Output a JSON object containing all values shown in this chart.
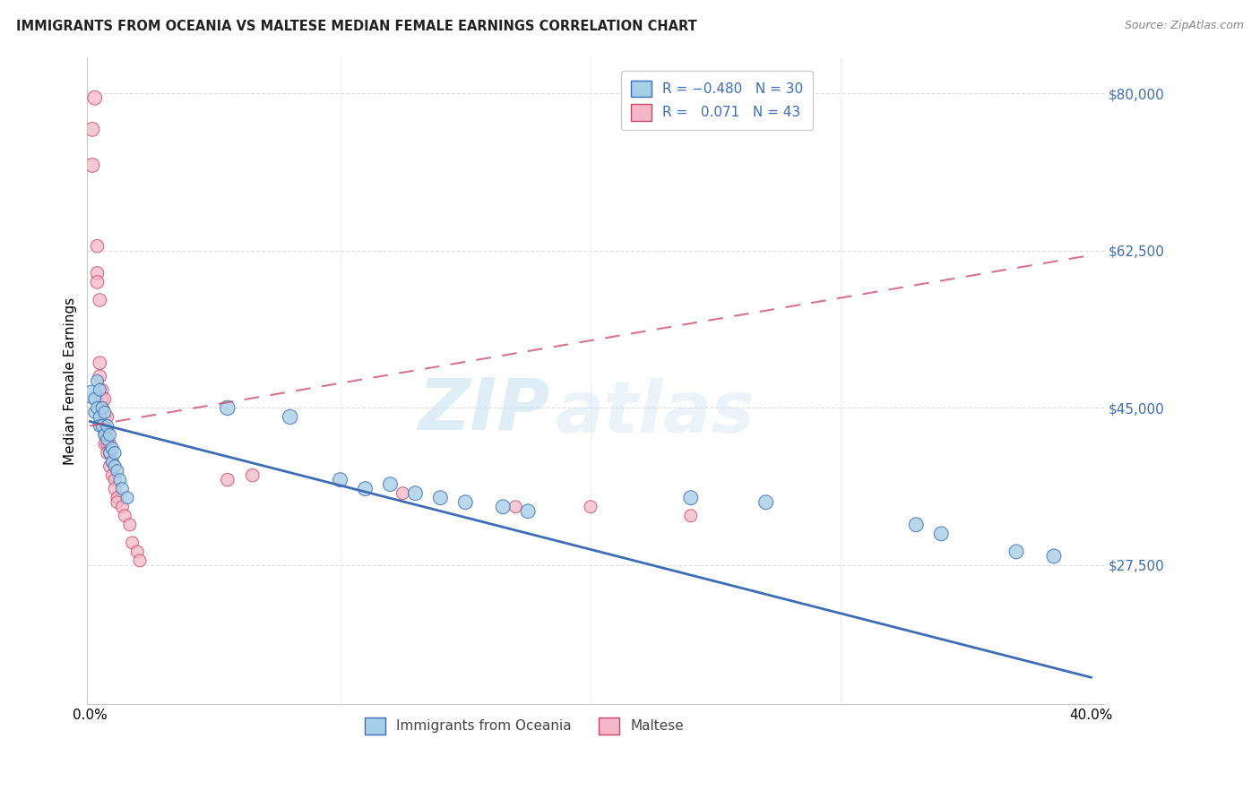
{
  "title": "IMMIGRANTS FROM OCEANIA VS MALTESE MEDIAN FEMALE EARNINGS CORRELATION CHART",
  "source": "Source: ZipAtlas.com",
  "ylabel": "Median Female Earnings",
  "ytick_labels": [
    "$80,000",
    "$62,500",
    "$45,000",
    "$27,500"
  ],
  "ytick_values": [
    80000,
    62500,
    45000,
    27500
  ],
  "ymin": 12000,
  "ymax": 84000,
  "xmin": -0.001,
  "xmax": 0.405,
  "color_blue": "#a8cfe8",
  "color_pink": "#f4b8c8",
  "color_blue_line": "#3d6eb5",
  "color_pink_line": "#d45070",
  "color_blue_dark": "#3d6eb5",
  "color_pink_dark": "#cc4466",
  "watermark_zip": "ZIP",
  "watermark_atlas": "atlas",
  "blue_line_x": [
    0.0,
    0.4
  ],
  "blue_line_y": [
    43500,
    15000
  ],
  "pink_line_x": [
    0.0,
    0.4
  ],
  "pink_line_y": [
    43000,
    62000
  ],
  "blue_scatter": [
    [
      0.001,
      46500
    ],
    [
      0.002,
      46000
    ],
    [
      0.002,
      44500
    ],
    [
      0.003,
      48000
    ],
    [
      0.003,
      45000
    ],
    [
      0.004,
      47000
    ],
    [
      0.004,
      44000
    ],
    [
      0.004,
      43000
    ],
    [
      0.005,
      45000
    ],
    [
      0.005,
      43000
    ],
    [
      0.006,
      44500
    ],
    [
      0.006,
      42000
    ],
    [
      0.007,
      43000
    ],
    [
      0.007,
      41500
    ],
    [
      0.008,
      42000
    ],
    [
      0.008,
      40000
    ],
    [
      0.009,
      40500
    ],
    [
      0.009,
      39000
    ],
    [
      0.01,
      40000
    ],
    [
      0.01,
      38500
    ],
    [
      0.011,
      38000
    ],
    [
      0.012,
      37000
    ],
    [
      0.013,
      36000
    ],
    [
      0.015,
      35000
    ],
    [
      0.055,
      45000
    ],
    [
      0.08,
      44000
    ],
    [
      0.1,
      37000
    ],
    [
      0.11,
      36000
    ],
    [
      0.12,
      36500
    ],
    [
      0.13,
      35500
    ],
    [
      0.14,
      35000
    ],
    [
      0.15,
      34500
    ],
    [
      0.165,
      34000
    ],
    [
      0.175,
      33500
    ],
    [
      0.24,
      35000
    ],
    [
      0.27,
      34500
    ],
    [
      0.33,
      32000
    ],
    [
      0.34,
      31000
    ],
    [
      0.37,
      29000
    ],
    [
      0.385,
      28500
    ]
  ],
  "blue_sizes": [
    220,
    100,
    100,
    100,
    100,
    100,
    100,
    100,
    100,
    100,
    100,
    100,
    100,
    100,
    100,
    100,
    100,
    100,
    100,
    100,
    100,
    100,
    100,
    100,
    140,
    140,
    130,
    130,
    130,
    130,
    130,
    130,
    130,
    130,
    130,
    130,
    130,
    130,
    130,
    130
  ],
  "pink_scatter": [
    [
      0.001,
      76000
    ],
    [
      0.001,
      72000
    ],
    [
      0.002,
      79500
    ],
    [
      0.003,
      63000
    ],
    [
      0.003,
      60000
    ],
    [
      0.003,
      59000
    ],
    [
      0.004,
      57000
    ],
    [
      0.004,
      50000
    ],
    [
      0.004,
      48500
    ],
    [
      0.005,
      47000
    ],
    [
      0.005,
      46000
    ],
    [
      0.005,
      45000
    ],
    [
      0.005,
      44500
    ],
    [
      0.006,
      46000
    ],
    [
      0.006,
      44000
    ],
    [
      0.006,
      43000
    ],
    [
      0.006,
      42000
    ],
    [
      0.006,
      41000
    ],
    [
      0.007,
      44000
    ],
    [
      0.007,
      42500
    ],
    [
      0.007,
      41000
    ],
    [
      0.007,
      40000
    ],
    [
      0.008,
      41000
    ],
    [
      0.008,
      40000
    ],
    [
      0.008,
      38500
    ],
    [
      0.009,
      39000
    ],
    [
      0.009,
      37500
    ],
    [
      0.01,
      37000
    ],
    [
      0.01,
      36000
    ],
    [
      0.011,
      35000
    ],
    [
      0.011,
      34500
    ],
    [
      0.013,
      34000
    ],
    [
      0.014,
      33000
    ],
    [
      0.016,
      32000
    ],
    [
      0.017,
      30000
    ],
    [
      0.019,
      29000
    ],
    [
      0.02,
      28000
    ],
    [
      0.055,
      37000
    ],
    [
      0.065,
      37500
    ],
    [
      0.125,
      35500
    ],
    [
      0.17,
      34000
    ],
    [
      0.2,
      34000
    ],
    [
      0.24,
      33000
    ]
  ],
  "pink_sizes": [
    130,
    130,
    130,
    110,
    110,
    110,
    110,
    110,
    110,
    100,
    100,
    100,
    100,
    100,
    100,
    100,
    100,
    100,
    100,
    100,
    100,
    100,
    100,
    100,
    100,
    100,
    100,
    100,
    100,
    100,
    100,
    100,
    100,
    100,
    100,
    100,
    100,
    110,
    110,
    100,
    100,
    100,
    100
  ]
}
